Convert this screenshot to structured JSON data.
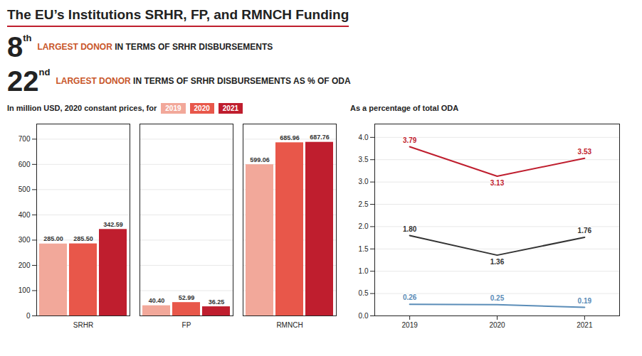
{
  "title": "The EU’s Institutions SRHR, FP, and RMNCH Funding",
  "annotations": [
    [
      "8",
      "th",
      "LARGEST DONOR",
      " IN TERMS OF SRHR DISBURSEMENTS"
    ],
    [
      "22",
      "nd",
      "LARGEST DONOR",
      " IN TERMS OF SRHR DISBURSEMENTS AS % OF ODA"
    ]
  ],
  "chart_data": [
    {
      "type": "bar",
      "title": "In million USD, 2020 constant prices, for",
      "categories": [
        "SRHR",
        "FP",
        "RMNCH"
      ],
      "series": [
        {
          "name": "2019",
          "color": "#f2a89a",
          "values": [
            285.0,
            40.4,
            599.06
          ],
          "value_labels": [
            "285.00",
            "40.40",
            "599.06"
          ]
        },
        {
          "name": "2020",
          "color": "#e8574a",
          "values": [
            285.5,
            52.99,
            685.96
          ],
          "value_labels": [
            "285.50",
            "52.99",
            "685.96"
          ]
        },
        {
          "name": "2021",
          "color": "#bf1e2e",
          "values": [
            342.59,
            36.25,
            687.76
          ],
          "value_labels": [
            "342.59",
            "36.25",
            "687.76"
          ]
        }
      ],
      "ylim": [
        0,
        760
      ],
      "yticks": [
        0,
        100,
        200,
        300,
        400,
        500,
        600,
        700
      ],
      "grid": true,
      "legend": "top-right",
      "data_labels": true
    },
    {
      "type": "line",
      "title": "As a percentage of total ODA",
      "x": [
        2019,
        2020,
        2021
      ],
      "series": [
        {
          "color": "#bf1e2e",
          "values": [
            3.79,
            3.13,
            3.53
          ],
          "value_labels": [
            "3.79",
            "3.13",
            "3.53"
          ]
        },
        {
          "color": "#333333",
          "values": [
            1.8,
            1.36,
            1.76
          ],
          "value_labels": [
            "1.80",
            "1.36",
            "1.76"
          ]
        },
        {
          "color": "#5b8db8",
          "values": [
            0.26,
            0.25,
            0.19
          ],
          "value_labels": [
            "0.26",
            "0.25",
            "0.19"
          ]
        }
      ],
      "xlim": [
        2018.6,
        2021.4
      ],
      "xticks": [
        2019,
        2020,
        2021
      ],
      "ylim": [
        0,
        4.3
      ],
      "yticks": [
        {
          "value": 0,
          "label": "0.0"
        },
        0.5,
        {
          "value": 1,
          "label": "1.0"
        },
        1.5,
        {
          "value": 2,
          "label": "2.0"
        },
        2.5,
        {
          "value": 3,
          "label": "3.0"
        },
        3.5,
        {
          "value": 4,
          "label": "4.0"
        }
      ],
      "grid": true,
      "data_labels": true
    }
  ]
}
